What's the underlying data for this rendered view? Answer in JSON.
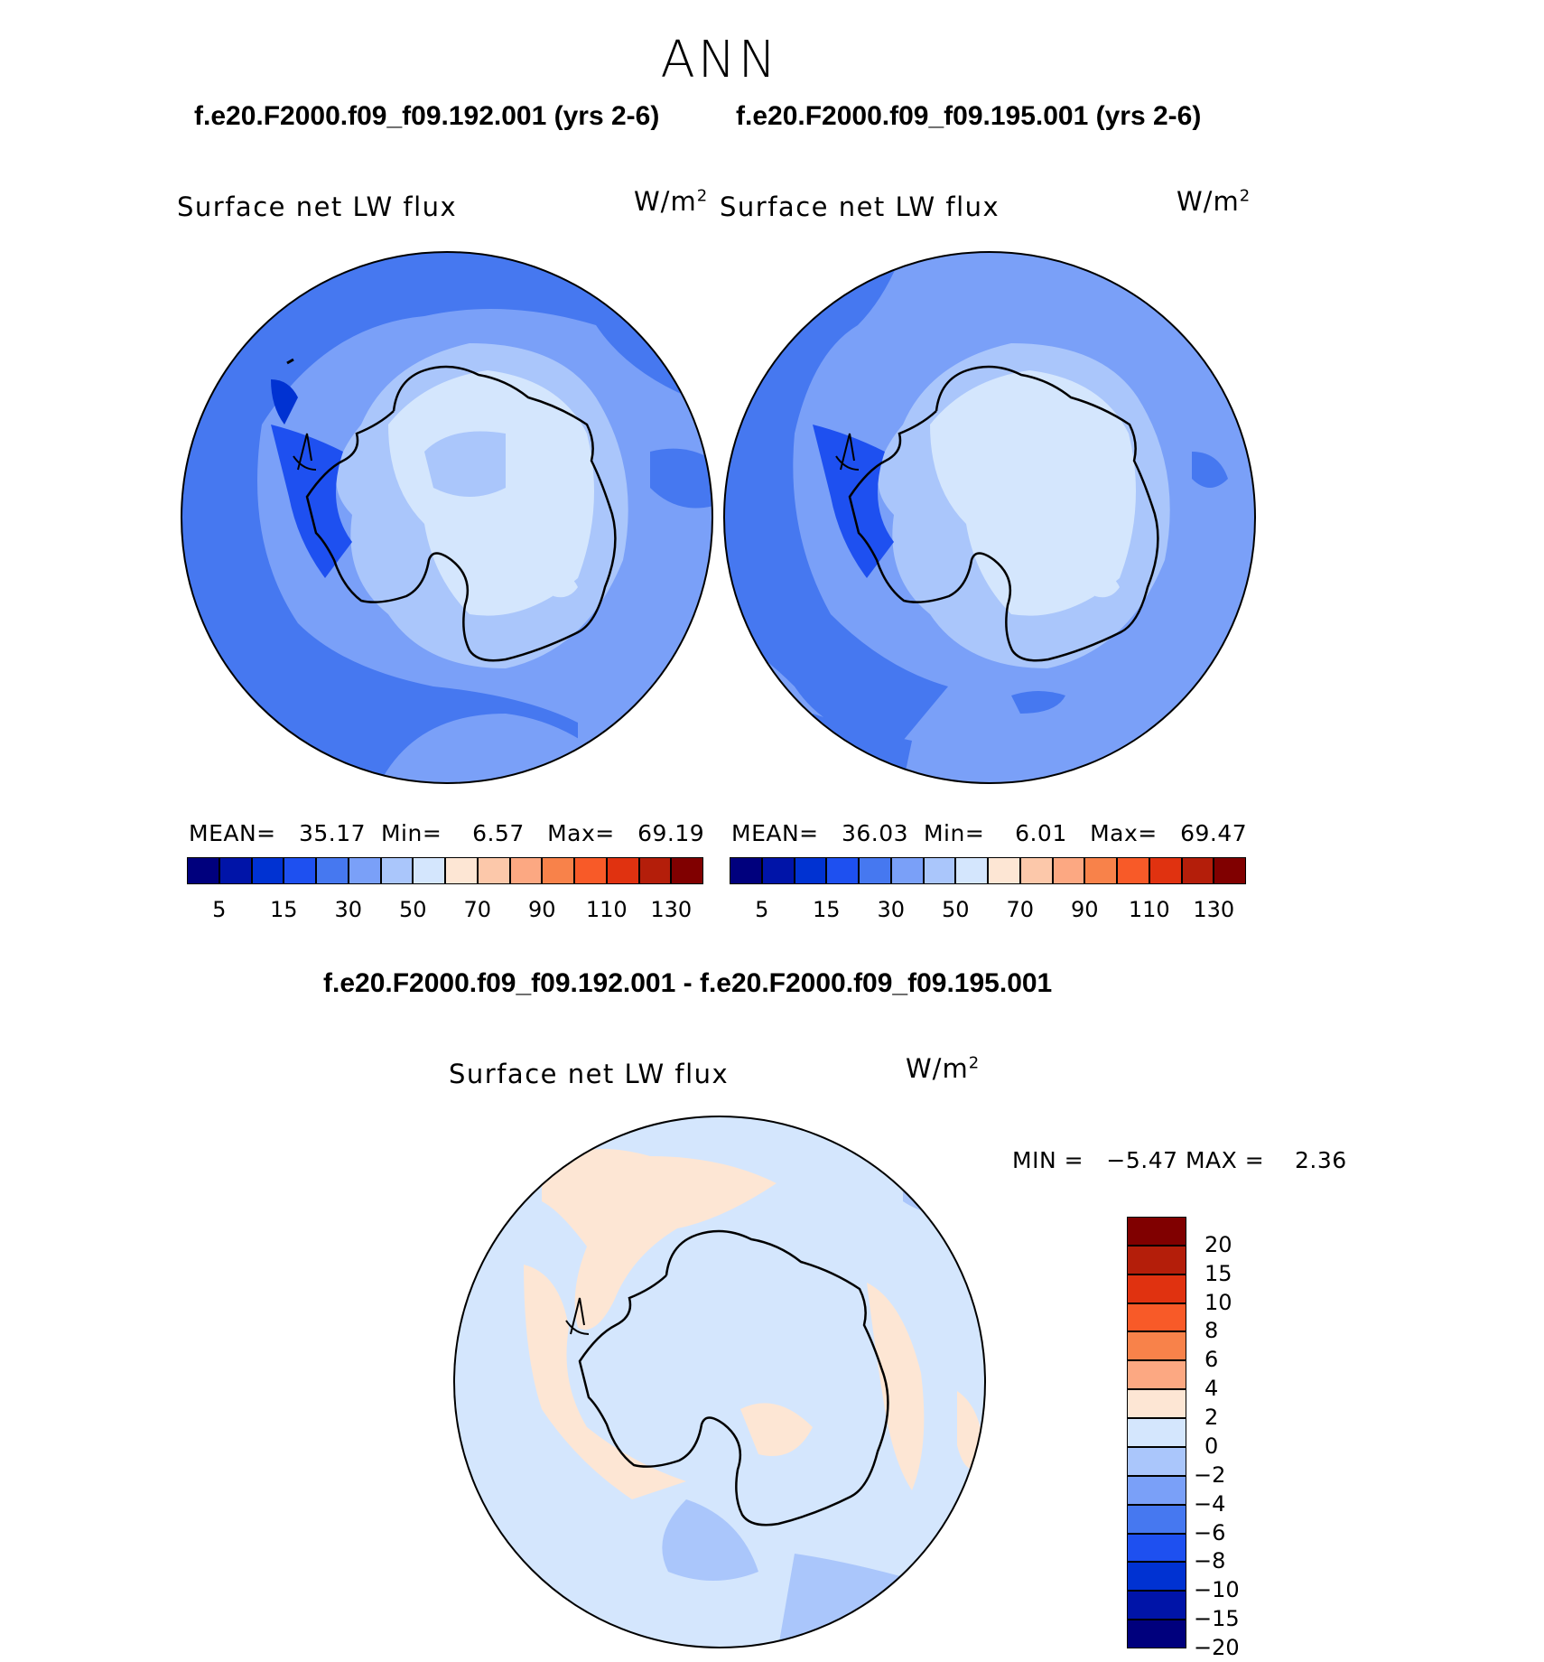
{
  "season": "ANN",
  "panels": [
    {
      "case_title": "f.e20.F2000.f09_f09.192.001 (yrs 2-6)",
      "variable": "Surface net LW flux",
      "units": "W/m",
      "units_exp": "2",
      "stats": {
        "mean_label": "MEAN=",
        "mean": "35.17",
        "min_label": "Min=",
        "min": "6.57",
        "max_label": "Max=",
        "max": "69.19"
      }
    },
    {
      "case_title": "f.e20.F2000.f09_f09.195.001 (yrs 2-6)",
      "variable": "Surface net LW flux",
      "units": "W/m",
      "units_exp": "2",
      "stats": {
        "mean_label": "MEAN=",
        "mean": "36.03",
        "min_label": "Min=",
        "min": "6.01",
        "max_label": "Max=",
        "max": "69.47"
      }
    }
  ],
  "colorbar_top": {
    "colors": [
      "#00007d",
      "#0014a8",
      "#0032d2",
      "#1e50f0",
      "#4678f0",
      "#7aa0f8",
      "#aac6fb",
      "#d4e6fd",
      "#fde6d4",
      "#fcc8aa",
      "#fca882",
      "#f8824a",
      "#f85a28",
      "#e03210",
      "#b41e0a",
      "#800000"
    ],
    "tick_labels": [
      "5",
      "15",
      "30",
      "50",
      "70",
      "90",
      "110",
      "130"
    ]
  },
  "diff": {
    "title": "f.e20.F2000.f09_f09.192.001 - f.e20.F2000.f09_f09.195.001",
    "variable": "Surface net LW flux",
    "units": "W/m",
    "units_exp": "2",
    "min_label": "MIN =",
    "min": "−5.47",
    "max_label": "MAX =",
    "max": "2.36"
  },
  "colorbar_diff": {
    "colors": [
      "#800000",
      "#b41e0a",
      "#e03210",
      "#f85a28",
      "#f8824a",
      "#fca882",
      "#fde6d4",
      "#d4e6fd",
      "#aac6fb",
      "#7aa0f8",
      "#4678f0",
      "#1e50f0",
      "#0032d2",
      "#0014a8",
      "#00007d"
    ],
    "tick_labels": [
      "20",
      "15",
      "10",
      "8",
      "6",
      "4",
      "2",
      "0",
      "−2",
      "−4",
      "−6",
      "−8",
      "−10",
      "−15",
      "−20"
    ]
  }
}
